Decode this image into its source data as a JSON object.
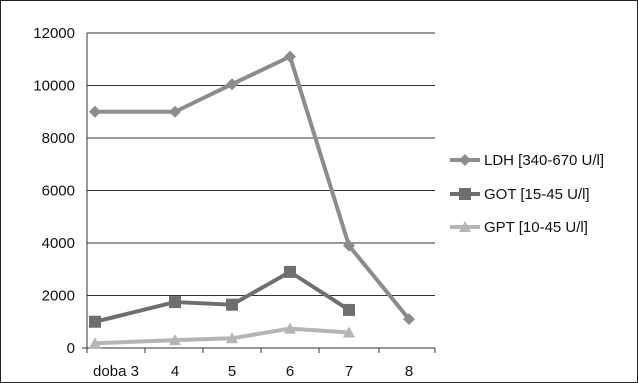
{
  "chart_data": {
    "type": "line",
    "categories": [
      "doba 3",
      "4",
      "5",
      "6",
      "7",
      "8"
    ],
    "ylim": [
      0,
      12000
    ],
    "yticks": [
      0,
      2000,
      4000,
      6000,
      8000,
      10000,
      12000
    ],
    "grid": "horizontal",
    "legend_position": "right",
    "series": [
      {
        "name": "LDH [340-670 U/l]",
        "marker": "diamond",
        "color": "#8c8c8c",
        "values": [
          9000,
          9000,
          10050,
          11100,
          3900,
          1100
        ]
      },
      {
        "name": "GOT [15-45 U/l]",
        "marker": "square",
        "color": "#6f6f6f",
        "values": [
          1000,
          1750,
          1650,
          2900,
          1450,
          null
        ]
      },
      {
        "name": "GPT [10-45 U/l]",
        "marker": "triangle",
        "color": "#b5b5b5",
        "values": [
          180,
          300,
          370,
          740,
          590,
          null
        ]
      }
    ]
  }
}
